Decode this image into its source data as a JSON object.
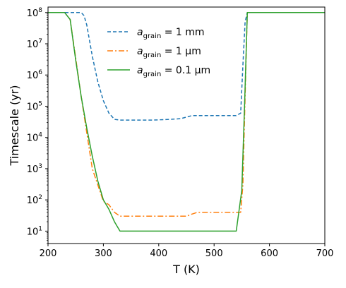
{
  "chart_data": {
    "type": "line",
    "xlabel": "T (K)",
    "ylabel": "Timescale (yr)",
    "xlim": [
      200,
      700
    ],
    "ylim": [
      4,
      150000000
    ],
    "yscale": "log",
    "xticks": [
      200,
      300,
      400,
      500,
      600,
      700
    ],
    "yticks": [
      {
        "value": 10,
        "base": "10",
        "exp": "1"
      },
      {
        "value": 100,
        "base": "10",
        "exp": "2"
      },
      {
        "value": 1000,
        "base": "10",
        "exp": "3"
      },
      {
        "value": 10000,
        "base": "10",
        "exp": "4"
      },
      {
        "value": 100000,
        "base": "10",
        "exp": "5"
      },
      {
        "value": 1000000,
        "base": "10",
        "exp": "6"
      },
      {
        "value": 10000000,
        "base": "10",
        "exp": "7"
      },
      {
        "value": 100000000,
        "base": "10",
        "exp": "8"
      }
    ],
    "grid": false,
    "legend_position": "top-center",
    "series": [
      {
        "name_main": "a",
        "name_sub": "grain",
        "name_rest": " = 1 mm",
        "color": "#1f77b4",
        "dash": "dashed",
        "x": [
          200,
          260,
          265,
          270,
          280,
          290,
          300,
          310,
          320,
          330,
          350,
          390,
          420,
          440,
          450,
          460,
          480,
          520,
          540,
          548,
          552,
          556,
          560,
          600,
          700
        ],
        "y": [
          100000000,
          100000000,
          80000000,
          40000000,
          4000000,
          600000,
          150000,
          60000,
          38000,
          36000,
          36000,
          36000,
          38000,
          40000,
          45000,
          50000,
          50000,
          50000,
          50000,
          60000,
          2000000,
          50000000,
          100000000,
          100000000,
          100000000
        ]
      },
      {
        "name_main": "a",
        "name_sub": "grain",
        "name_rest": " = 1 μm",
        "color": "#ff7f0e",
        "dash": "dashdot",
        "x": [
          200,
          230,
          240,
          260,
          280,
          300,
          310,
          320,
          330,
          350,
          400,
          450,
          460,
          470,
          500,
          540,
          548,
          552,
          556,
          560,
          600,
          700
        ],
        "y": [
          100000000,
          100000000,
          60000000,
          200000,
          1000,
          90,
          70,
          40,
          30,
          30,
          30,
          30,
          35,
          40,
          40,
          40,
          40,
          300,
          200000,
          100000000,
          100000000,
          100000000
        ]
      },
      {
        "name_main": "a",
        "name_sub": "grain",
        "name_rest": " = 0.1 μm",
        "color": "#2ca02c",
        "dash": "solid",
        "x": [
          200,
          230,
          240,
          250,
          260,
          270,
          280,
          290,
          300,
          310,
          320,
          330,
          400,
          500,
          540,
          550,
          555,
          560,
          600,
          700
        ],
        "y": [
          100000000,
          100000000,
          60000000,
          3000000,
          200000,
          20000,
          2500,
          400,
          100,
          50,
          20,
          10,
          10,
          10,
          10,
          200,
          100000,
          100000000,
          100000000,
          100000000
        ]
      }
    ]
  }
}
